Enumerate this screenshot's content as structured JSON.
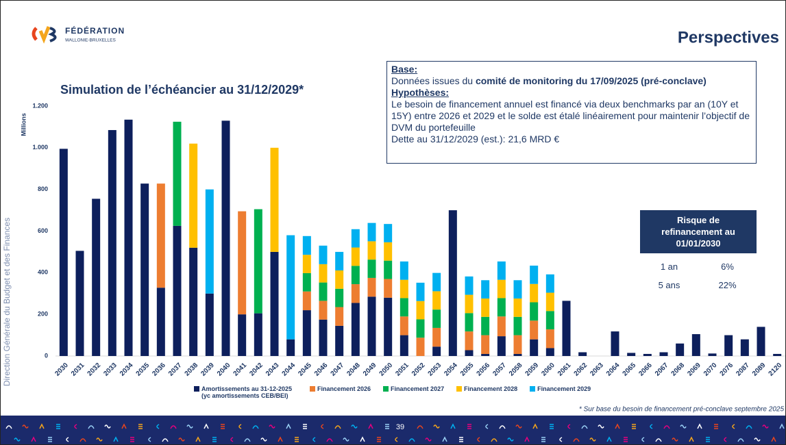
{
  "header": {
    "logo_line1": "FÉDÉRATION",
    "logo_line2": "WALLONIE-BRUXELLES",
    "title": "Perspectives"
  },
  "side_text": "Direction Générale du Budget et des Finances",
  "info_box": {
    "base_title": "Base:",
    "base_prefix": "Données issues du ",
    "base_bold": "comité de monitoring du 17/09/2025 (pré-conclave)",
    "hypotheses_title": "Hypothèses:",
    "hypotheses_text": "Le besoin de financement annuel est financé via deux benchmarks par an (10Y et 15Y) entre 2026 et 2029 et le solde est étalé linéairement pour maintenir l’objectif de DVM du portefeuille",
    "debt_text": "Dette au 31/12/2029 (est.): 21,6 MRD €"
  },
  "risk_table": {
    "title": "Risque de refinancement au 01/01/2030",
    "rows": [
      [
        "1 an",
        "6%"
      ],
      [
        "5 ans",
        "22%"
      ]
    ]
  },
  "footnote": "* Sur base du besoin de financement pré-conclave septembre 2025",
  "page_number": "39",
  "chart_data": {
    "type": "bar",
    "stacked": true,
    "title": "Simulation de l’échéancier au 31/12/2029*",
    "y_label": "Millions",
    "categories": [
      "2030",
      "2031",
      "2032",
      "2033",
      "2034",
      "2035",
      "2036",
      "2037",
      "2038",
      "2039",
      "2040",
      "2041",
      "2042",
      "2043",
      "2044",
      "2045",
      "2046",
      "2047",
      "2048",
      "2049",
      "2050",
      "2051",
      "2052",
      "2053",
      "2054",
      "2055",
      "2056",
      "2057",
      "2058",
      "2059",
      "2060",
      "2061",
      "2062",
      "2063",
      "2064",
      "2065",
      "2066",
      "2067",
      "2068",
      "2069",
      "2070",
      "2076",
      "2087",
      "2089",
      "2120"
    ],
    "series": [
      {
        "name": "Amortissements au 31-12-2025 (yc amortissements CEB/BEI)",
        "color": "#0d1f5c",
        "values": [
          995,
          505,
          755,
          1085,
          1135,
          828,
          328,
          625,
          520,
          300,
          1130,
          200,
          205,
          500,
          80,
          220,
          175,
          145,
          255,
          285,
          280,
          100,
          0,
          45,
          700,
          28,
          10,
          95,
          10,
          80,
          38,
          265,
          18,
          0,
          118,
          15,
          10,
          18,
          60,
          105,
          12,
          100,
          80,
          140,
          10
        ]
      },
      {
        "name": "Financement 2026",
        "color": "#ed7d31",
        "values": [
          0,
          0,
          0,
          0,
          0,
          0,
          500,
          0,
          0,
          0,
          0,
          495,
          0,
          0,
          0,
          90,
          90,
          90,
          90,
          90,
          90,
          90,
          88,
          90,
          0,
          90,
          90,
          95,
          90,
          90,
          90,
          0,
          0,
          0,
          0,
          0,
          0,
          0,
          0,
          0,
          0,
          0,
          0,
          0,
          0
        ]
      },
      {
        "name": "Financement 2027",
        "color": "#00b050",
        "values": [
          0,
          0,
          0,
          0,
          0,
          0,
          0,
          500,
          0,
          0,
          0,
          0,
          500,
          0,
          0,
          88,
          88,
          88,
          88,
          88,
          88,
          88,
          88,
          88,
          0,
          88,
          88,
          88,
          88,
          88,
          88,
          0,
          0,
          0,
          0,
          0,
          0,
          0,
          0,
          0,
          0,
          0,
          0,
          0,
          0
        ]
      },
      {
        "name": "Financement 2028",
        "color": "#ffc000",
        "values": [
          0,
          0,
          0,
          0,
          0,
          0,
          0,
          0,
          500,
          0,
          0,
          0,
          0,
          500,
          0,
          88,
          88,
          88,
          88,
          88,
          88,
          88,
          88,
          88,
          0,
          88,
          88,
          88,
          88,
          88,
          88,
          0,
          0,
          0,
          0,
          0,
          0,
          0,
          0,
          0,
          0,
          0,
          0,
          0,
          0
        ]
      },
      {
        "name": "Financement 2029",
        "color": "#00b0f0",
        "values": [
          0,
          0,
          0,
          0,
          0,
          0,
          0,
          0,
          0,
          500,
          0,
          0,
          0,
          0,
          500,
          90,
          89,
          89,
          88,
          88,
          88,
          88,
          88,
          88,
          0,
          88,
          88,
          88,
          88,
          88,
          88,
          0,
          0,
          0,
          0,
          0,
          0,
          0,
          0,
          0,
          0,
          0,
          0,
          0,
          0
        ]
      }
    ],
    "ylim": [
      0,
      1200
    ],
    "yticks": [
      0,
      200,
      400,
      600,
      800,
      {
        "value": 1000,
        "label": "1.000"
      },
      {
        "value": 1200,
        "label": "1.200"
      }
    ],
    "grid": false,
    "legend": "bottom"
  }
}
